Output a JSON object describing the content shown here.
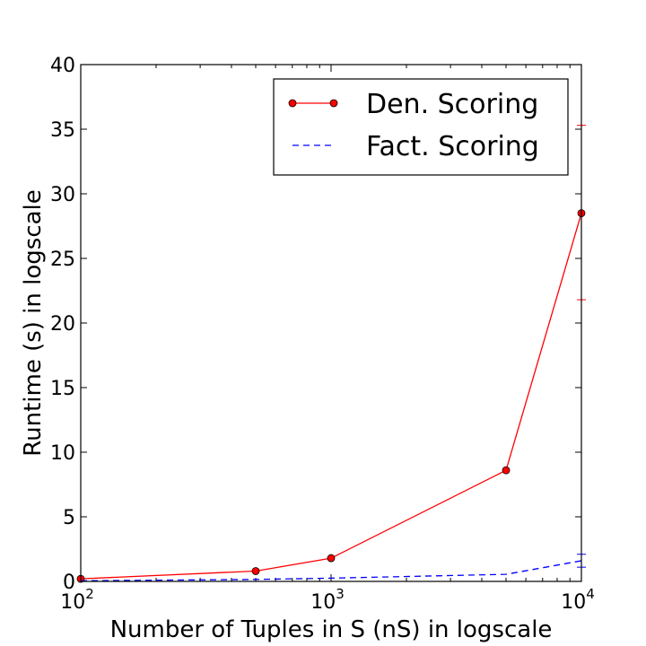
{
  "chart_data": {
    "type": "line",
    "xlabel": "Number of Tuples in S (nS) in logscale",
    "ylabel": "Runtime (s) in logscale",
    "x_scale": "log",
    "xlim": [
      100,
      10000
    ],
    "ylim": [
      0,
      40
    ],
    "x_ticks": [
      {
        "base": "10",
        "exp": "2",
        "value": 100
      },
      {
        "base": "10",
        "exp": "3",
        "value": 1000
      },
      {
        "base": "10",
        "exp": "4",
        "value": 10000
      }
    ],
    "y_ticks": [
      0,
      5,
      10,
      15,
      20,
      25,
      30,
      35,
      40
    ],
    "grid": false,
    "legend_position": "top-right",
    "series": [
      {
        "name": "Den. Scoring",
        "color": "#ff0000",
        "line_style": "solid",
        "marker": "circle",
        "x": [
          100,
          500,
          1000,
          5000,
          10000
        ],
        "y": [
          0.2,
          0.8,
          1.8,
          8.6,
          28.5
        ],
        "error_bars": [
          {
            "x": 10000,
            "low": 21.8,
            "high": 35.3
          }
        ]
      },
      {
        "name": "Fact. Scoring",
        "color": "#0000ff",
        "line_style": "dashed",
        "marker": "none",
        "x": [
          100,
          500,
          1000,
          5000,
          10000
        ],
        "y": [
          0.05,
          0.15,
          0.25,
          0.55,
          1.6
        ],
        "error_bars": [
          {
            "x": 10000,
            "low": 1.1,
            "high": 2.1
          }
        ]
      }
    ]
  }
}
